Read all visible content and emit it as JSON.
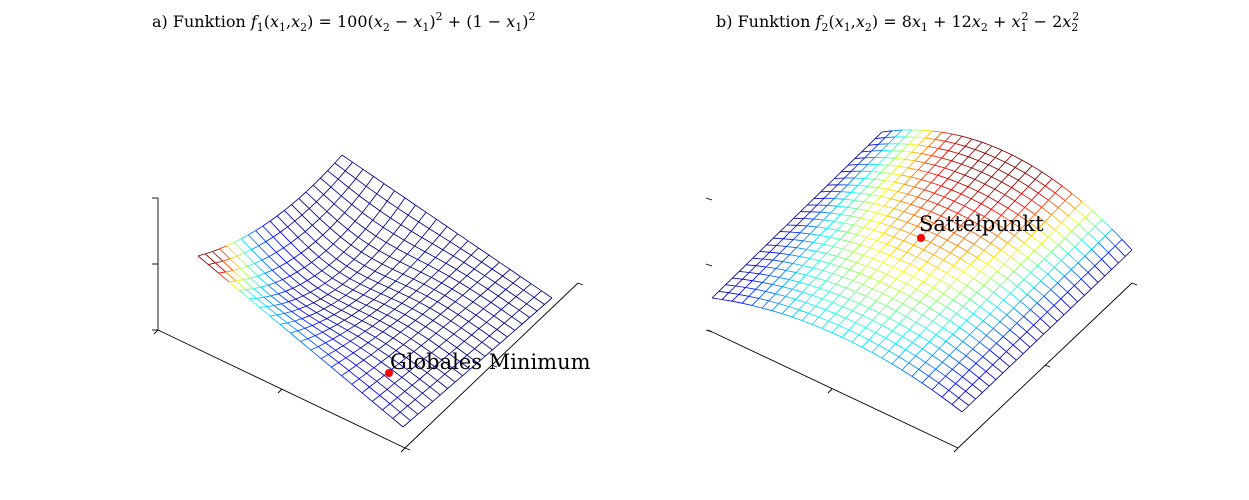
{
  "chart_data": [
    {
      "type": "surface",
      "mesh_style": "wireframe",
      "colormap": "jet",
      "title": "a) Funktion f1(x1,x2) = 100(x2 − x1)² + (1 − x1)²",
      "title_parts": {
        "prefix": "a) Funktion ",
        "fname": "f",
        "fsub": "1",
        "args_open": "(",
        "v1": "x",
        "v1sub": "1",
        "comma": ",",
        "v2": "x",
        "v2sub": "2",
        "args_close": ")",
        "rhs1": " = 100(",
        "rhs1a": "x",
        "rhs1asub": "2",
        "rhs1b": " − ",
        "rhs1c": "x",
        "rhs1csub": "1",
        "rhs1d": ")",
        "pow1": "2",
        "rhs2": " + (1 − ",
        "rhs2a": "x",
        "rhs2asub": "1",
        "rhs2b": ")",
        "pow2": "2"
      },
      "function": "100*(x2 - x1)^2 + (1 - x1)^2",
      "grid_lines": 20,
      "annotation": {
        "text": "Globales Minimum",
        "x1": 1,
        "x2": 1,
        "f": 0
      },
      "marker_color": "#ff0000",
      "grid": false
    },
    {
      "type": "surface",
      "mesh_style": "wireframe",
      "colormap": "jet",
      "title": "b) Funktion f2(x1,x2) = 8x1 + 12x2 + x1² − 2x2²",
      "title_parts": {
        "prefix": "b) Funktion ",
        "fname": "f",
        "fsub": "2",
        "args_open": "(",
        "v1": "x",
        "v1sub": "1",
        "comma": ",",
        "v2": "x",
        "v2sub": "2",
        "args_close": ")",
        "t1": " = 8",
        "t1v": "x",
        "t1sub": "1",
        "t2": " + 12",
        "t2v": "x",
        "t2sub": "2",
        "t3": " + ",
        "t3v": "x",
        "t3sub": "1",
        "t3pow": "2",
        "t4": " − 2",
        "t4v": "x",
        "t4sub": "2",
        "t4pow": "2"
      },
      "function": "8*x1 + 12*x2 + x1^2 - 2*x2^2",
      "grid_lines": 25,
      "annotation": {
        "text": "Sattelpunkt",
        "x1": -4,
        "x2": 3
      },
      "marker_color": "#ff0000",
      "grid": false
    }
  ]
}
